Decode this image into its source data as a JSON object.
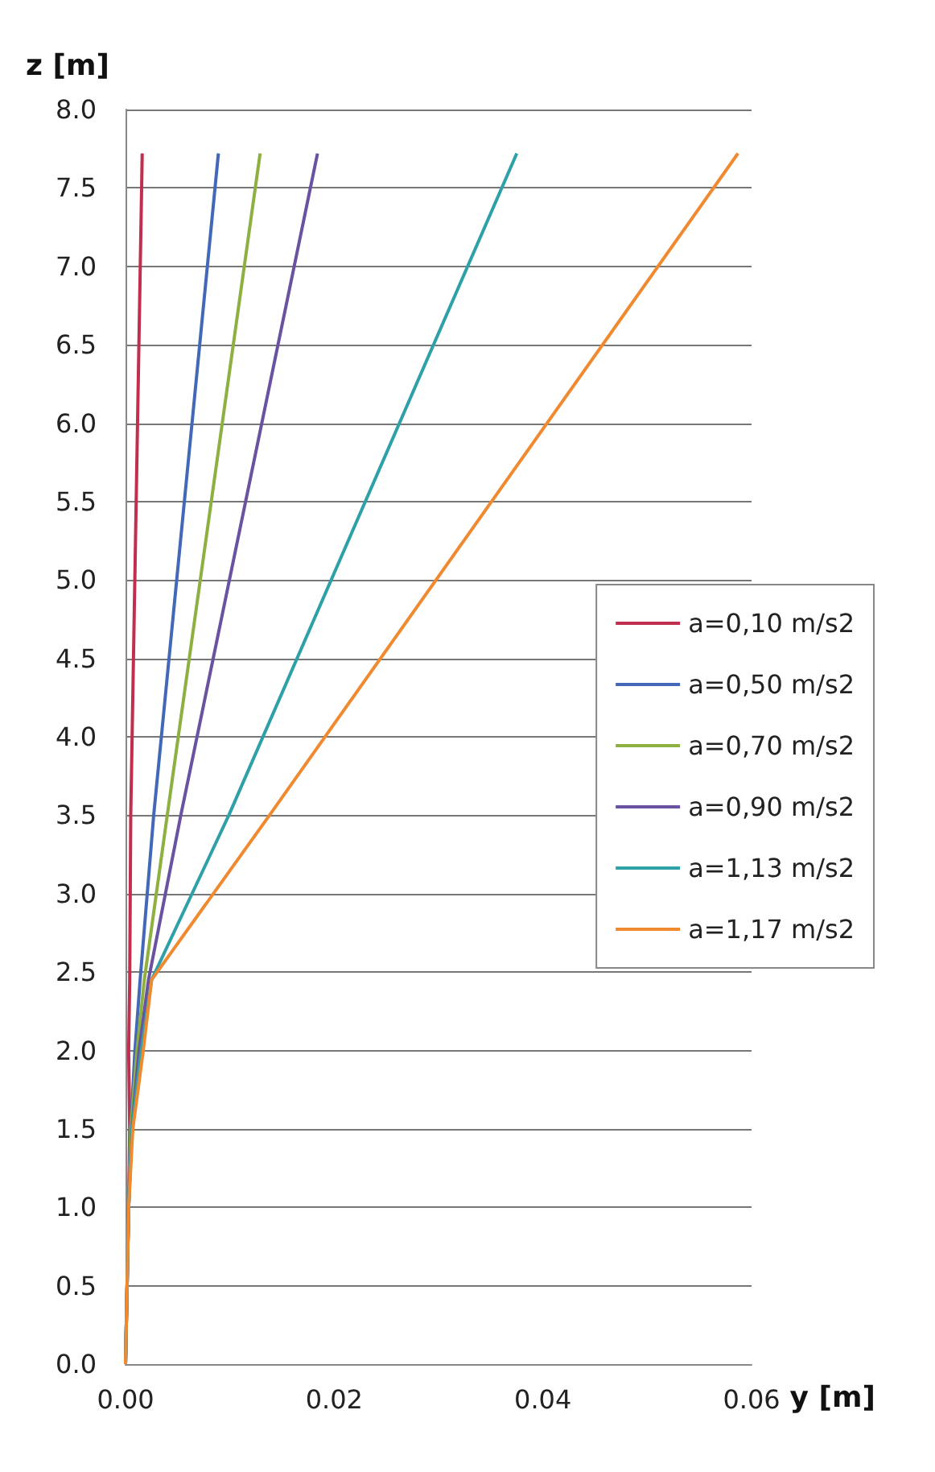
{
  "chart_data": {
    "type": "line",
    "xlabel": "y [m]",
    "ylabel": "z [m]",
    "xlim": [
      0,
      0.06
    ],
    "xticks": [
      {
        "value": 0,
        "label": "0.00"
      },
      {
        "value": 0.02,
        "label": "0.02"
      },
      {
        "value": 0.04,
        "label": "0.04"
      },
      {
        "value": 0.06,
        "label": "0.06"
      }
    ],
    "ylim": [
      0,
      8
    ],
    "yticks": [
      {
        "value": 0,
        "label": "0.0"
      },
      {
        "value": 0.5,
        "label": "0.5"
      },
      {
        "value": 1,
        "label": "1.0"
      },
      {
        "value": 1.5,
        "label": "1.5"
      },
      {
        "value": 2,
        "label": "2.0"
      },
      {
        "value": 2.5,
        "label": "2.5"
      },
      {
        "value": 3,
        "label": "3.0"
      },
      {
        "value": 3.5,
        "label": "3.5"
      },
      {
        "value": 4,
        "label": "4.0"
      },
      {
        "value": 4.5,
        "label": "4.5"
      },
      {
        "value": 5,
        "label": "5.0"
      },
      {
        "value": 5.5,
        "label": "5.5"
      },
      {
        "value": 6,
        "label": "6.0"
      },
      {
        "value": 6.5,
        "label": "6.5"
      },
      {
        "value": 7,
        "label": "7.0"
      },
      {
        "value": 7.5,
        "label": "7.5"
      },
      {
        "value": 8,
        "label": "8.0"
      }
    ],
    "grid": "y",
    "legend": "right",
    "marker": "none",
    "line_style": "solid",
    "series": [
      {
        "name": "a=0,10 m/s2",
        "color": "#c0304e",
        "x": [
          0,
          0.0003,
          0.0004,
          0.0003,
          0.0004,
          0.0005,
          0.0016
        ],
        "values": [
          0,
          1,
          1.5,
          2,
          2.45,
          3.5,
          7.72
        ]
      },
      {
        "name": "a=0,50 m/s2",
        "color": "#4468b8",
        "x": [
          0,
          0.0003,
          0.0005,
          0.0009,
          0.0014,
          0.0027,
          0.0089
        ],
        "values": [
          0,
          1,
          1.5,
          2,
          2.45,
          3.5,
          7.72
        ]
      },
      {
        "name": "a=0,70 m/s2",
        "color": "#8db040",
        "x": [
          0,
          0.0003,
          0.0005,
          0.0011,
          0.0018,
          0.004,
          0.0129
        ],
        "values": [
          0,
          1,
          1.5,
          2,
          2.45,
          3.5,
          7.72
        ]
      },
      {
        "name": "a=0,90 m/s2",
        "color": "#6a52a0",
        "x": [
          0,
          0.0003,
          0.0006,
          0.0013,
          0.0022,
          0.0053,
          0.0184
        ],
        "values": [
          0,
          1,
          1.5,
          2,
          2.45,
          3.5,
          7.72
        ]
      },
      {
        "name": "a=1,13 m/s2",
        "color": "#2ea0a8",
        "x": [
          0,
          0.0003,
          0.0006,
          0.0015,
          0.0025,
          0.0099,
          0.0375
        ],
        "values": [
          0,
          1,
          1.5,
          2,
          2.45,
          3.5,
          7.72
        ]
      },
      {
        "name": "a=1,17 m/s2",
        "color": "#f08a30",
        "x": [
          0,
          0.0003,
          0.0007,
          0.0017,
          0.0025,
          0.0138,
          0.0587
        ],
        "values": [
          0,
          1,
          1.5,
          2,
          2.45,
          3.5,
          7.72
        ]
      }
    ]
  }
}
